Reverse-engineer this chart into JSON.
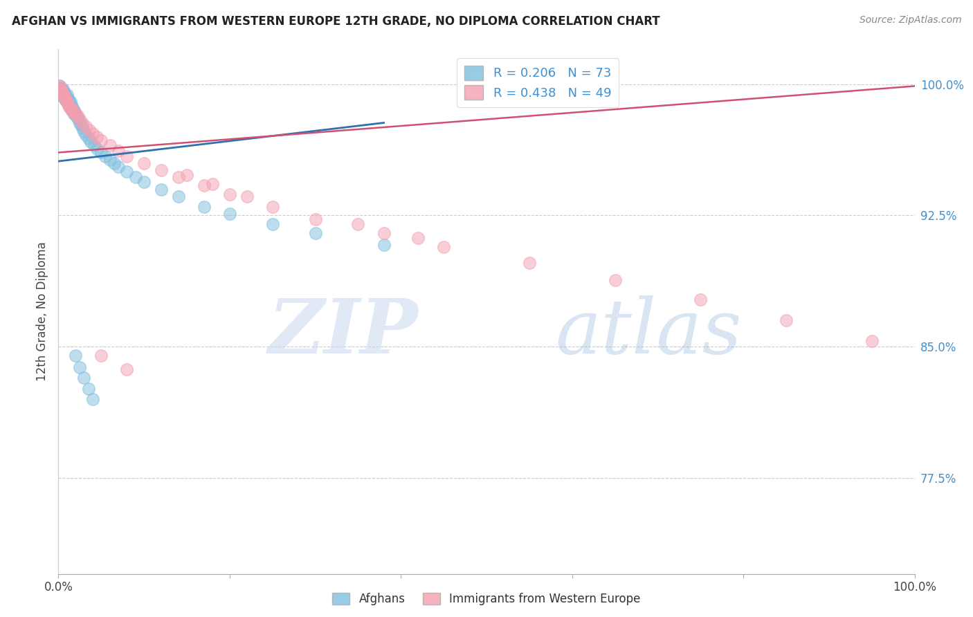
{
  "title": "AFGHAN VS IMMIGRANTS FROM WESTERN EUROPE 12TH GRADE, NO DIPLOMA CORRELATION CHART",
  "source": "Source: ZipAtlas.com",
  "ylabel": "12th Grade, No Diploma",
  "color_blue": "#7fbfdf",
  "color_pink": "#f4a0b0",
  "color_blue_line": "#3070b0",
  "color_pink_line": "#d05070",
  "color_blue_text": "#4090d0",
  "color_right_tick": "#4090d0",
  "afghans_x": [
    0.001,
    0.002,
    0.002,
    0.003,
    0.003,
    0.003,
    0.004,
    0.004,
    0.004,
    0.005,
    0.005,
    0.005,
    0.006,
    0.006,
    0.007,
    0.007,
    0.007,
    0.008,
    0.008,
    0.009,
    0.009,
    0.01,
    0.01,
    0.01,
    0.011,
    0.011,
    0.012,
    0.012,
    0.013,
    0.013,
    0.014,
    0.014,
    0.015,
    0.015,
    0.016,
    0.016,
    0.017,
    0.018,
    0.018,
    0.019,
    0.02,
    0.021,
    0.022,
    0.023,
    0.025,
    0.026,
    0.028,
    0.03,
    0.032,
    0.035,
    0.038,
    0.042,
    0.045,
    0.05,
    0.055,
    0.06,
    0.065,
    0.07,
    0.08,
    0.09,
    0.1,
    0.12,
    0.14,
    0.17,
    0.2,
    0.25,
    0.3,
    0.38,
    0.02,
    0.025,
    0.03,
    0.035,
    0.04
  ],
  "afghans_y": [
    0.999,
    0.998,
    0.997,
    0.998,
    0.996,
    0.995,
    0.997,
    0.996,
    0.994,
    0.997,
    0.995,
    0.993,
    0.996,
    0.994,
    0.995,
    0.993,
    0.992,
    0.994,
    0.992,
    0.993,
    0.991,
    0.994,
    0.992,
    0.99,
    0.992,
    0.99,
    0.991,
    0.989,
    0.99,
    0.988,
    0.99,
    0.987,
    0.988,
    0.986,
    0.987,
    0.985,
    0.986,
    0.985,
    0.983,
    0.984,
    0.983,
    0.982,
    0.981,
    0.98,
    0.978,
    0.977,
    0.975,
    0.973,
    0.971,
    0.969,
    0.967,
    0.965,
    0.963,
    0.961,
    0.959,
    0.957,
    0.955,
    0.953,
    0.95,
    0.947,
    0.944,
    0.94,
    0.936,
    0.93,
    0.926,
    0.92,
    0.915,
    0.908,
    0.845,
    0.838,
    0.832,
    0.826,
    0.82
  ],
  "western_eu_x": [
    0.001,
    0.002,
    0.003,
    0.004,
    0.005,
    0.006,
    0.007,
    0.008,
    0.009,
    0.01,
    0.011,
    0.012,
    0.013,
    0.015,
    0.016,
    0.018,
    0.02,
    0.022,
    0.025,
    0.028,
    0.032,
    0.036,
    0.04,
    0.045,
    0.05,
    0.06,
    0.07,
    0.08,
    0.1,
    0.12,
    0.14,
    0.17,
    0.2,
    0.25,
    0.3,
    0.38,
    0.45,
    0.55,
    0.65,
    0.75,
    0.85,
    0.95,
    0.15,
    0.18,
    0.22,
    0.35,
    0.42,
    0.05,
    0.08
  ],
  "western_eu_y": [
    0.999,
    0.998,
    0.997,
    0.996,
    0.995,
    0.994,
    0.993,
    0.992,
    0.991,
    0.99,
    0.989,
    0.988,
    0.987,
    0.986,
    0.985,
    0.984,
    0.983,
    0.982,
    0.98,
    0.978,
    0.976,
    0.974,
    0.972,
    0.97,
    0.968,
    0.965,
    0.962,
    0.959,
    0.955,
    0.951,
    0.947,
    0.942,
    0.937,
    0.93,
    0.923,
    0.915,
    0.907,
    0.898,
    0.888,
    0.877,
    0.865,
    0.853,
    0.948,
    0.943,
    0.936,
    0.92,
    0.912,
    0.845,
    0.837
  ],
  "blue_line_x": [
    0.0,
    0.38
  ],
  "blue_line_y": [
    0.956,
    0.978
  ],
  "pink_line_x": [
    0.0,
    1.0
  ],
  "pink_line_y": [
    0.961,
    0.999
  ],
  "xlim": [
    0.0,
    1.0
  ],
  "ylim": [
    0.72,
    1.02
  ],
  "yticks": [
    0.775,
    0.85,
    0.925,
    1.0
  ],
  "ytick_labels": [
    "77.5%",
    "85.0%",
    "92.5%",
    "100.0%"
  ],
  "xtick_labels": [
    "0.0%",
    "",
    "",
    "",
    "",
    "100.0%"
  ],
  "xticks": [
    0.0,
    0.2,
    0.4,
    0.6,
    0.8,
    1.0
  ],
  "legend_label1": "R = 0.206   N = 73",
  "legend_label2": "R = 0.438   N = 49",
  "bottom_label1": "Afghans",
  "bottom_label2": "Immigrants from Western Europe",
  "watermark_zip": "ZIP",
  "watermark_atlas": "atlas"
}
